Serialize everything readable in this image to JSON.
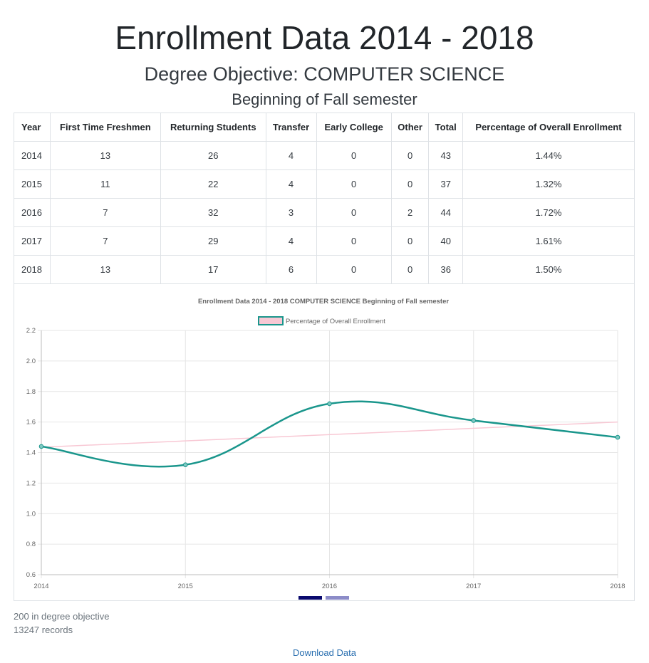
{
  "header": {
    "title": "Enrollment Data 2014 - 2018",
    "subtitle": "Degree Objective: COMPUTER SCIENCE",
    "semester": "Beginning of Fall semester"
  },
  "table": {
    "columns": [
      "Year",
      "First Time Freshmen",
      "Returning Students",
      "Transfer",
      "Early College",
      "Other",
      "Total",
      "Percentage of Overall Enrollment"
    ],
    "rows": [
      [
        "2014",
        "13",
        "26",
        "4",
        "0",
        "0",
        "43",
        "1.44%"
      ],
      [
        "2015",
        "11",
        "22",
        "4",
        "0",
        "0",
        "37",
        "1.32%"
      ],
      [
        "2016",
        "7",
        "32",
        "3",
        "0",
        "2",
        "44",
        "1.72%"
      ],
      [
        "2017",
        "7",
        "29",
        "4",
        "0",
        "0",
        "40",
        "1.61%"
      ],
      [
        "2018",
        "13",
        "17",
        "6",
        "0",
        "0",
        "36",
        "1.50%"
      ]
    ]
  },
  "chart_data": {
    "type": "line",
    "title": "Enrollment Data 2014 - 2018 COMPUTER SCIENCE Beginning of Fall semester",
    "x": [
      "2014",
      "2015",
      "2016",
      "2017",
      "2018"
    ],
    "series": [
      {
        "name": "Percentage of Overall Enrollment",
        "values": [
          1.44,
          1.32,
          1.72,
          1.61,
          1.5
        ],
        "color": "#1a968c",
        "fill": "#f8c8d4"
      }
    ],
    "trendline": {
      "start": 1.435,
      "end": 1.6,
      "color": "#f8c8d4"
    },
    "ylim": [
      0.6,
      2.2
    ],
    "yticks": [
      "0.6",
      "0.8",
      "1.0",
      "1.2",
      "1.4",
      "1.6",
      "1.8",
      "2.0",
      "2.2"
    ],
    "grid": true,
    "legend": "top-center",
    "xlabel": "",
    "ylabel": ""
  },
  "footer": {
    "degree_count": "200 in degree objective",
    "records": "13247 records",
    "download_label": "Download Data"
  }
}
